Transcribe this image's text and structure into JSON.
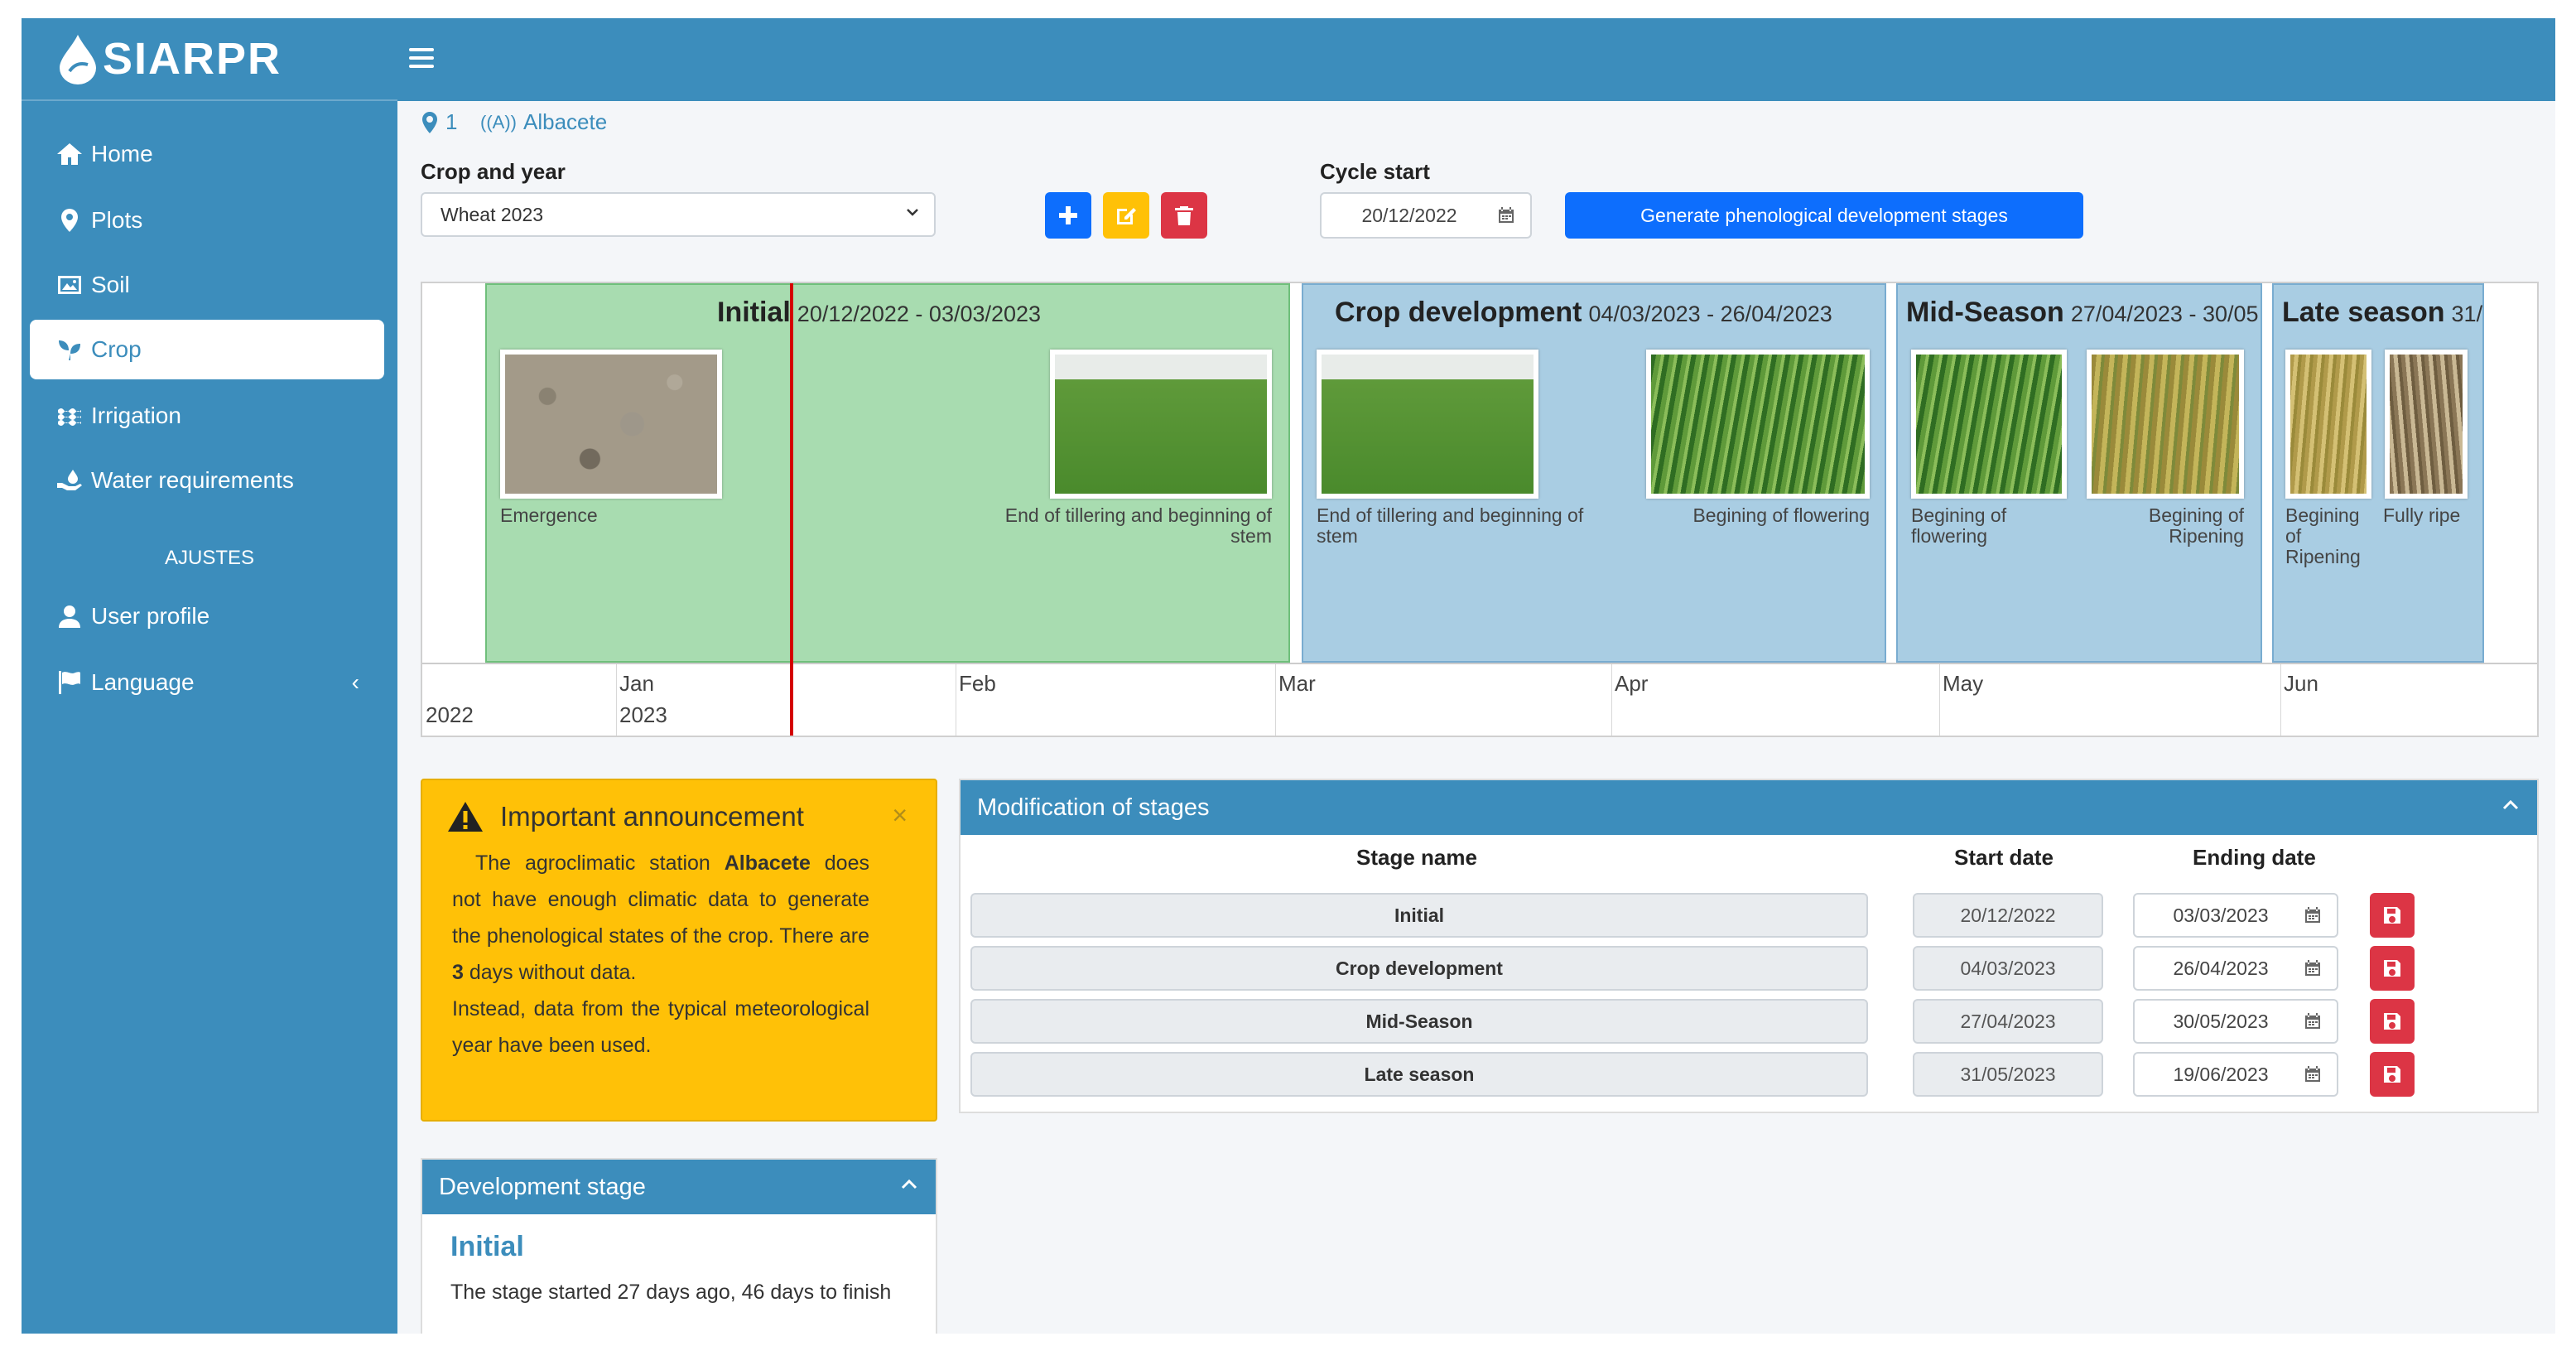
{
  "brand": {
    "name": "SIARPR"
  },
  "sidebar": {
    "items": [
      {
        "label": "Home",
        "icon": "home-icon"
      },
      {
        "label": "Plots",
        "icon": "map-marker-icon"
      },
      {
        "label": "Soil",
        "icon": "image-icon"
      },
      {
        "label": "Crop",
        "icon": "seedling-icon"
      },
      {
        "label": "Irrigation",
        "icon": "water-icon"
      },
      {
        "label": "Water requirements",
        "icon": "hand-holding-water-icon"
      }
    ],
    "section_header": "AJUSTES",
    "settings": [
      {
        "label": "User profile",
        "icon": "user-icon"
      },
      {
        "label": "Language",
        "icon": "flag-icon"
      }
    ]
  },
  "breadcrumb": {
    "plot": "1",
    "station": "Albacete"
  },
  "form": {
    "crop_year_label": "Crop and year",
    "crop_year_value": "Wheat 2023",
    "cycle_start_label": "Cycle start",
    "cycle_start_value": "20/12/2022",
    "generate_label": "Generate phenological development stages"
  },
  "timeline": {
    "stages": [
      {
        "name": "Initial",
        "dates": "20/12/2022 - 03/03/2023"
      },
      {
        "name": "Crop development",
        "dates": "04/03/2023 - 26/04/2023"
      },
      {
        "name": "Mid-Season",
        "dates": "27/04/2023 - 30/05"
      },
      {
        "name": "Late season",
        "dates": "31/"
      }
    ],
    "photos": [
      {
        "label": "Emergence"
      },
      {
        "label": "End of tillering and beginning of stem"
      },
      {
        "label": "End of tillering and beginning of stem"
      },
      {
        "label": "Begining of flowering"
      },
      {
        "label": "Begining of flowering"
      },
      {
        "label": "Begining of Ripening"
      },
      {
        "label": "Begining of Ripening"
      },
      {
        "label": "Fully ripe"
      }
    ],
    "axis": {
      "year_left": "2022",
      "months": [
        "Jan",
        "Feb",
        "Mar",
        "Apr",
        "May",
        "Jun"
      ],
      "year_jan": "2023"
    },
    "colors": {
      "initial": "#a8dcb0",
      "other": "#a9cde3"
    }
  },
  "announcement": {
    "title": "Important announcement",
    "close": "×",
    "t1": "The agroclimatic station ",
    "station": "Albacete",
    "t2": " does not have enough climatic data to generate the phenological states of the crop. There are ",
    "days": "3",
    "t3": " days without data.",
    "t4": "Instead, data from the typical meteorological year have been used."
  },
  "dev_stage": {
    "header": "Development stage",
    "name": "Initial",
    "text": "The stage started 27 days ago, 46 days to finish"
  },
  "modification": {
    "header": "Modification of stages",
    "columns": {
      "name": "Stage name",
      "start": "Start date",
      "end": "Ending date"
    },
    "rows": [
      {
        "name": "Initial",
        "start": "20/12/2022",
        "end": "03/03/2023"
      },
      {
        "name": "Crop development",
        "start": "04/03/2023",
        "end": "26/04/2023"
      },
      {
        "name": "Mid-Season",
        "start": "27/04/2023",
        "end": "30/05/2023"
      },
      {
        "name": "Late season",
        "start": "31/05/2023",
        "end": "19/06/2023"
      }
    ]
  },
  "colors": {
    "primary": "#3c8dbc",
    "warning": "#ffc107",
    "danger": "#dc3545",
    "blue_btn": "#0d6efd"
  }
}
